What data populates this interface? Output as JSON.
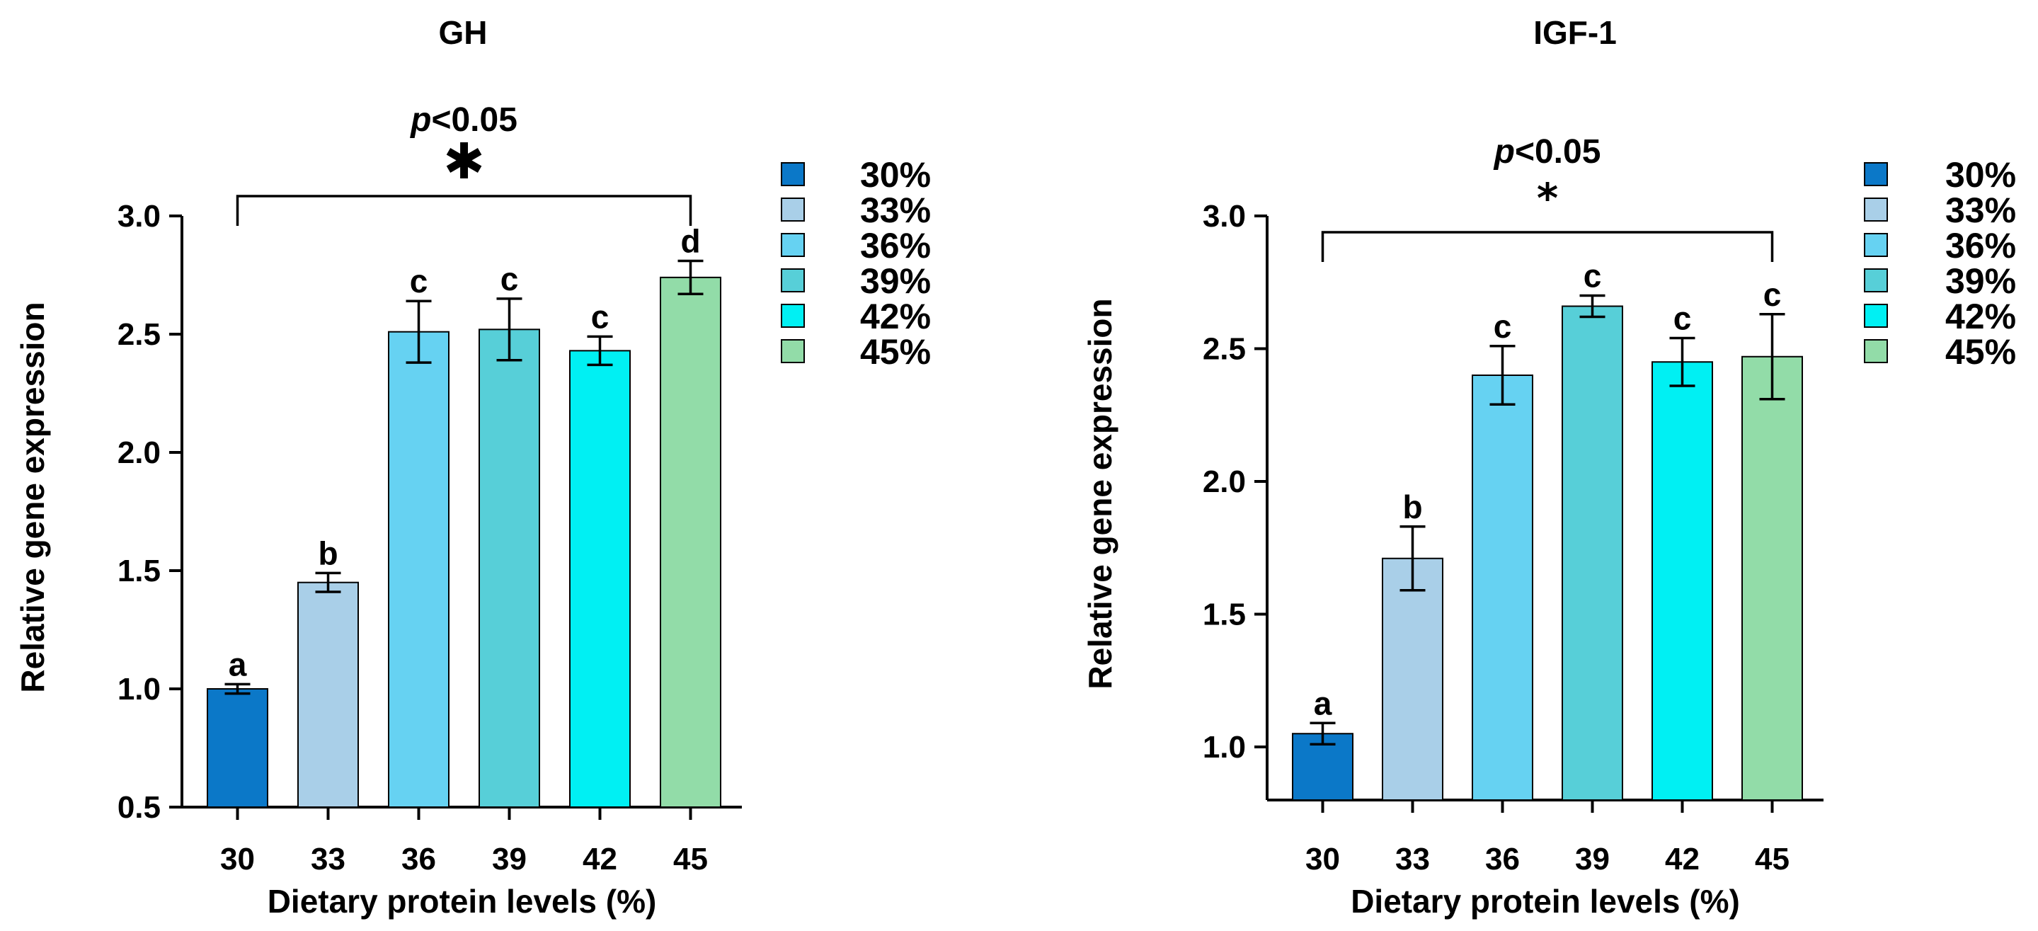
{
  "chart_data": [
    {
      "type": "bar",
      "title": "GH",
      "xlabel": "Dietary protein levels (%)",
      "ylabel": "Relative gene expression",
      "ylim": [
        0.5,
        3.0
      ],
      "yticks": [
        "0.5",
        "1.0",
        "1.5",
        "2.0",
        "2.5",
        "3.0"
      ],
      "categories": [
        "30",
        "33",
        "36",
        "39",
        "42",
        "45"
      ],
      "values": [
        1.0,
        1.45,
        2.51,
        2.52,
        2.43,
        2.74
      ],
      "errors": [
        0.02,
        0.04,
        0.13,
        0.13,
        0.06,
        0.07
      ],
      "significance_letters": [
        "a",
        "b",
        "c",
        "c",
        "c",
        "d"
      ],
      "colors": [
        "#0b78c8",
        "#a9cfe8",
        "#66d2f2",
        "#57cfd8",
        "#00f0f3",
        "#92dca8"
      ],
      "legend": [
        "30%",
        "33%",
        "36%",
        "39%",
        "42%",
        "45%"
      ],
      "legend_position": "right",
      "comparison": {
        "from": "30",
        "to": "45",
        "p_prefix": "p",
        "p_rest": "<0.05",
        "star": "✱"
      }
    },
    {
      "type": "bar",
      "title": "IGF-1",
      "xlabel": "Dietary protein levels (%)",
      "ylabel": "Relative gene expression",
      "ylim": [
        0.8,
        3.0
      ],
      "yticks": [
        "1.0",
        "1.5",
        "2.0",
        "2.5",
        "3.0"
      ],
      "categories": [
        "30",
        "33",
        "36",
        "39",
        "42",
        "45"
      ],
      "values": [
        1.05,
        1.71,
        2.4,
        2.66,
        2.45,
        2.47
      ],
      "errors": [
        0.04,
        0.12,
        0.11,
        0.04,
        0.09,
        0.16
      ],
      "significance_letters": [
        "a",
        "b",
        "c",
        "c",
        "c",
        "c"
      ],
      "colors": [
        "#0b78c8",
        "#a9cfe8",
        "#66d2f2",
        "#57cfd8",
        "#00f0f3",
        "#92dca8"
      ],
      "legend": [
        "30%",
        "33%",
        "36%",
        "39%",
        "42%",
        "45%"
      ],
      "legend_position": "right",
      "comparison": {
        "from": "30",
        "to": "45",
        "p_prefix": "p",
        "p_rest": "<0.05",
        "star": "*"
      }
    }
  ]
}
